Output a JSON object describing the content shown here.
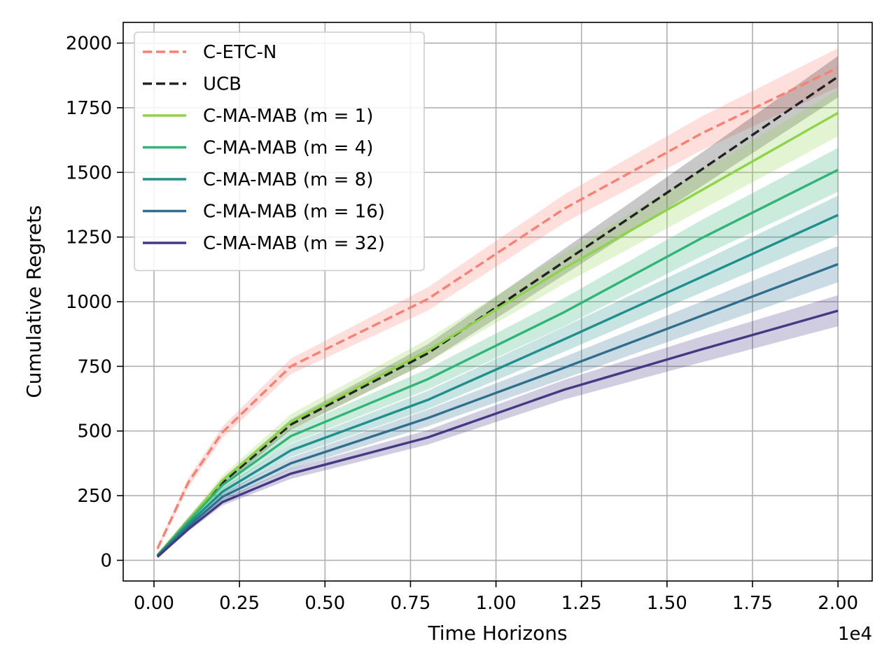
{
  "chart_data": {
    "type": "line",
    "xlabel": "Time Horizons",
    "ylabel": "Cumulative Regrets",
    "x_offset_label": "1e4",
    "xlim": [
      -0.09,
      2.1
    ],
    "ylim": [
      -80,
      2080
    ],
    "x_ticks": [
      0.0,
      0.25,
      0.5,
      0.75,
      1.0,
      1.25,
      1.5,
      1.75,
      2.0
    ],
    "x_tick_labels": [
      "0.00",
      "0.25",
      "0.50",
      "0.75",
      "1.00",
      "1.25",
      "1.50",
      "1.75",
      "2.00"
    ],
    "y_ticks": [
      0,
      250,
      500,
      750,
      1000,
      1250,
      1500,
      1750,
      2000
    ],
    "y_tick_labels": [
      "0",
      "250",
      "500",
      "750",
      "1000",
      "1250",
      "1500",
      "1750",
      "2000"
    ],
    "grid": true,
    "legend_position": "top-left",
    "x": [
      0.01,
      0.1,
      0.2,
      0.4,
      0.8,
      1.2,
      1.6,
      2.0
    ],
    "series": [
      {
        "name": "C-ETC-N",
        "color": "#fa8072",
        "style": "dashed",
        "values": [
          45,
          300,
          495,
          750,
          1010,
          1360,
          1650,
          1905
        ],
        "band": [
          10,
          18,
          22,
          30,
          45,
          55,
          65,
          75
        ]
      },
      {
        "name": "UCB",
        "color": "#222222",
        "style": "dashed",
        "values": [
          20,
          155,
          300,
          525,
          800,
          1155,
          1510,
          1870
        ],
        "band": [
          5,
          10,
          15,
          20,
          35,
          50,
          65,
          80
        ]
      },
      {
        "name": "C-MA-MAB (m = 1)",
        "color": "#8ed44a",
        "style": "solid",
        "values": [
          20,
          155,
          310,
          535,
          810,
          1130,
          1430,
          1730
        ],
        "band": [
          5,
          12,
          18,
          30,
          45,
          60,
          75,
          90
        ]
      },
      {
        "name": "C-MA-MAB (m = 4)",
        "color": "#31b477",
        "style": "solid",
        "values": [
          18,
          150,
          290,
          480,
          700,
          960,
          1245,
          1510
        ],
        "band": [
          5,
          12,
          18,
          28,
          40,
          55,
          70,
          85
        ]
      },
      {
        "name": "C-MA-MAB (m = 8)",
        "color": "#1f8f8b",
        "style": "solid",
        "values": [
          17,
          140,
          265,
          425,
          620,
          855,
          1095,
          1335
        ],
        "band": [
          5,
          11,
          16,
          25,
          35,
          48,
          60,
          75
        ]
      },
      {
        "name": "C-MA-MAB (m = 16)",
        "color": "#306e8e",
        "style": "solid",
        "values": [
          15,
          130,
          245,
          375,
          550,
          745,
          945,
          1145
        ],
        "band": [
          5,
          10,
          15,
          22,
          32,
          42,
          55,
          70
        ]
      },
      {
        "name": "C-MA-MAB (m = 32)",
        "color": "#443983",
        "style": "solid",
        "values": [
          13,
          120,
          225,
          335,
          475,
          660,
          815,
          965
        ],
        "band": [
          4,
          9,
          13,
          20,
          28,
          38,
          50,
          60
        ]
      }
    ]
  }
}
